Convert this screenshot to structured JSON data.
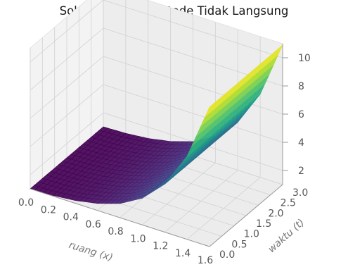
{
  "chart_data": {
    "type": "surface3d",
    "title": "Solusi Numerik Metode Tidak Langsung",
    "xlabel": "ruang (x)",
    "ylabel": "waktu (t)",
    "zlabel": "",
    "x_ticks": [
      "0.0",
      "0.2",
      "0.4",
      "0.6",
      "0.8",
      "1.0",
      "1.2",
      "1.4",
      "1.6"
    ],
    "y_ticks": [
      "0.0",
      "0.5",
      "1.0",
      "1.5",
      "2.0",
      "2.5",
      "3.0"
    ],
    "z_ticks": [
      "2",
      "4",
      "6",
      "8",
      "10"
    ],
    "xlim": [
      0,
      1.6
    ],
    "ylim": [
      0,
      3.0
    ],
    "zlim": [
      1,
      11
    ],
    "colormap": "viridis",
    "surface_samples": {
      "x": [
        0.0,
        0.2,
        0.4,
        0.6,
        0.8,
        1.0,
        1.2,
        1.4,
        1.6
      ],
      "z": [
        1.0,
        1.05,
        1.2,
        1.5,
        2.0,
        2.9,
        4.4,
        6.9,
        10.9
      ],
      "note_t_dependence": "nearly constant in t"
    }
  }
}
